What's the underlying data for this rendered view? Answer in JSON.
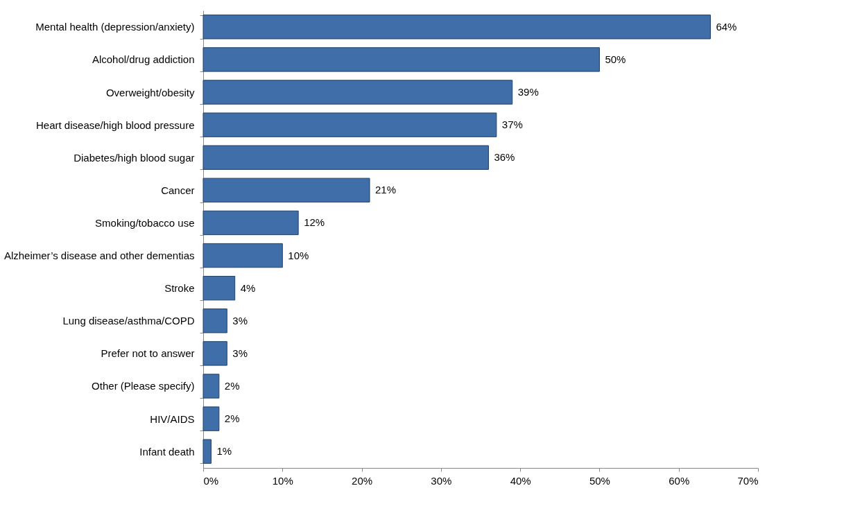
{
  "chart_data": {
    "type": "bar",
    "orientation": "horizontal",
    "categories": [
      "Mental health (depression/anxiety)",
      "Alcohol/drug addiction",
      "Overweight/obesity",
      "Heart disease/high blood pressure",
      "Diabetes/high blood sugar",
      "Cancer",
      "Smoking/tobacco use",
      "Alzheimer’s disease and other dementias",
      "Stroke",
      "Lung disease/asthma/COPD",
      "Prefer not to answer",
      "Other (Please specify)",
      "HIV/AIDS",
      "Infant death"
    ],
    "values": [
      64,
      50,
      39,
      37,
      36,
      21,
      12,
      10,
      4,
      3,
      3,
      2,
      2,
      1
    ],
    "value_labels": [
      "64%",
      "50%",
      "39%",
      "37%",
      "36%",
      "21%",
      "12%",
      "10%",
      "4%",
      "3%",
      "3%",
      "2%",
      "2%",
      "1%"
    ],
    "color": "#3f6ea8",
    "xlim": [
      0,
      70
    ],
    "xticks": [
      {
        "value": 0,
        "label": "0%"
      },
      {
        "value": 10,
        "label": "10%"
      },
      {
        "value": 20,
        "label": "20%"
      },
      {
        "value": 30,
        "label": "30%"
      },
      {
        "value": 40,
        "label": "40%"
      },
      {
        "value": 50,
        "label": "50%"
      },
      {
        "value": 60,
        "label": "60%"
      },
      {
        "value": 70,
        "label": "70%"
      }
    ],
    "grid": false
  }
}
